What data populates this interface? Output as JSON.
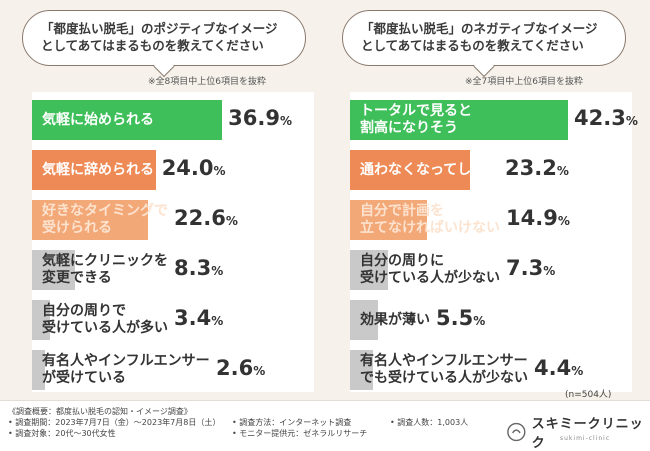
{
  "left": {
    "question_lines": [
      "「都度払い脱毛」のポジティブなイメージ",
      "としてあてはまるものを教えてください"
    ],
    "note": "※全8項目中上位6項目を抜粋"
  },
  "right": {
    "question_lines": [
      "「都度払い脱毛」のネガティブなイメージ",
      "としてあてはまるものを教えてください"
    ],
    "note": "※全7項目中上位6項目を抜粋"
  },
  "chart_data": [
    {
      "type": "bar",
      "title": "「都度払い脱毛」のポジティブなイメージとしてあてはまるものを教えてください",
      "categories": [
        [
          "気軽に始められる"
        ],
        [
          "気軽に辞められる"
        ],
        [
          "好きなタイミングで",
          "受けられる"
        ],
        [
          "気軽にクリニックを",
          "変更できる"
        ],
        [
          "自分の周りで",
          "受けている人が多い"
        ],
        [
          "有名人やインフルエンサー",
          "が受けている"
        ]
      ],
      "values": [
        36.9,
        24.0,
        22.6,
        8.3,
        3.4,
        2.6
      ],
      "value_labels": [
        "36.9",
        "24.0",
        "22.6",
        "8.3",
        "3.4",
        "2.6"
      ],
      "unit": "%",
      "xlim": [
        0,
        42.3
      ],
      "colors": [
        "#3fbf5a",
        "#ee8a55",
        "#f3a878",
        "#c9c9c9",
        "#c9c9c9",
        "#c9c9c9"
      ]
    },
    {
      "type": "bar",
      "title": "「都度払い脱毛」のネガティブなイメージとしてあてはまるものを教えてください",
      "categories": [
        [
          "トータルで見ると",
          "割高になりそう"
        ],
        [
          "通わなくなってしまう"
        ],
        [
          "自分で計画を",
          "立てなければいけない"
        ],
        [
          "自分の周りに",
          "受けている人が少ない"
        ],
        [
          "効果が薄い"
        ],
        [
          "有名人やインフルエンサー",
          "でも受けている人が少ない"
        ]
      ],
      "values": [
        42.3,
        23.2,
        14.9,
        7.3,
        5.5,
        4.4
      ],
      "value_labels": [
        "42.3",
        "23.2",
        "14.9",
        "7.3",
        "5.5",
        "4.4"
      ],
      "unit": "%",
      "xlim": [
        0,
        42.3
      ],
      "colors": [
        "#3fbf5a",
        "#ee8a55",
        "#f3a878",
        "#c9c9c9",
        "#c9c9c9",
        "#c9c9c9"
      ]
    }
  ],
  "n_note": "(n=504人)",
  "footer": {
    "col1": [
      "《調査概要：都度払い脱毛の認知・イメージ調査》",
      "• 調査期間：2023年7月7日（金）〜2023年7月8日（土）",
      "• 調査対象：20代〜30代女性"
    ],
    "col2": [
      "• 調査方法：インターネット調査",
      "• モニター提供元：ゼネラルリサーチ"
    ],
    "col3": [
      "• 調査人数：1,003人"
    ],
    "logo_text": "スキミークリニック",
    "logo_sub": "sukimi-clinic"
  }
}
